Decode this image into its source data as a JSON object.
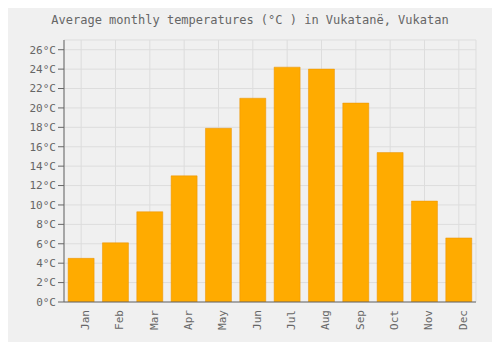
{
  "chart_data": {
    "type": "bar",
    "title": "Average monthly temperatures (°C ) in Vukatanë, Vukatan",
    "categories": [
      "Jan",
      "Feb",
      "Mar",
      "Apr",
      "May",
      "Jun",
      "Jul",
      "Aug",
      "Sep",
      "Oct",
      "Nov",
      "Dec"
    ],
    "values": [
      4.5,
      6.1,
      9.3,
      13.0,
      17.9,
      21.0,
      24.2,
      24.0,
      20.5,
      15.4,
      10.4,
      6.6
    ],
    "color": "#FFAB00",
    "ylim": [
      0,
      27
    ],
    "yticks": [
      {
        "value": 0,
        "label": "0°C"
      },
      {
        "value": 2,
        "label": "2°C"
      },
      {
        "value": 4,
        "label": "4°C"
      },
      {
        "value": 6,
        "label": "6°C"
      },
      {
        "value": 8,
        "label": "8°C"
      },
      {
        "value": 10,
        "label": "10°C"
      },
      {
        "value": 12,
        "label": "12°C"
      },
      {
        "value": 14,
        "label": "14°C"
      },
      {
        "value": 16,
        "label": "16°C"
      },
      {
        "value": 18,
        "label": "18°C"
      },
      {
        "value": 20,
        "label": "20°C"
      },
      {
        "value": 22,
        "label": "22°C"
      },
      {
        "value": 24,
        "label": "24°C"
      },
      {
        "value": 26,
        "label": "26°C"
      }
    ],
    "grid": true
  }
}
